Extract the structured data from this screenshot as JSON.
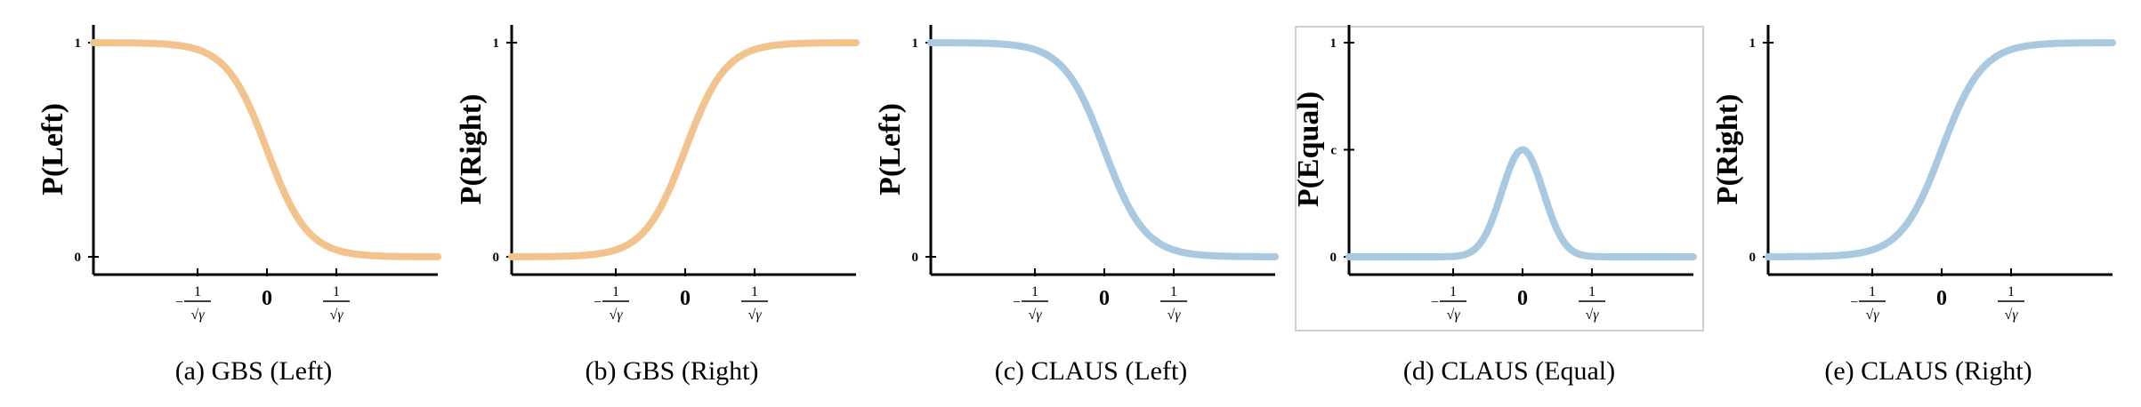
{
  "chart_data": [
    {
      "type": "line",
      "caption": "(a) GBS (Left)",
      "ylabel": "P(Left)",
      "curve": "decreasing_sigmoid",
      "color": "#F3C38E",
      "yticks": [
        "0",
        "1"
      ],
      "xticks": [
        "-1/√γ",
        "0",
        "1/√γ"
      ],
      "ylim": [
        0,
        1
      ],
      "framed": false
    },
    {
      "type": "line",
      "caption": "(b) GBS (Right)",
      "ylabel": "P(Right)",
      "curve": "increasing_sigmoid",
      "color": "#F3C38E",
      "yticks": [
        "0",
        "1"
      ],
      "xticks": [
        "-1/√γ",
        "0",
        "1/√γ"
      ],
      "ylim": [
        0,
        1
      ],
      "framed": false
    },
    {
      "type": "line",
      "caption": "(c) CLAUS (Left)",
      "ylabel": "P(Left)",
      "curve": "decreasing_sigmoid",
      "color": "#A9C9E0",
      "yticks": [
        "0",
        "1"
      ],
      "xticks": [
        "-1/√γ",
        "0",
        "1/√γ"
      ],
      "ylim": [
        0,
        1
      ],
      "framed": false
    },
    {
      "type": "line",
      "caption": "(d) CLAUS (Equal)",
      "ylabel": "P(Equal)",
      "curve": "bell",
      "peak": 0.5,
      "color": "#A9C9E0",
      "yticks": [
        "0",
        "c",
        "1"
      ],
      "xticks": [
        "-1/√γ",
        "0",
        "1/√γ"
      ],
      "ylim": [
        0,
        1
      ],
      "framed": true
    },
    {
      "type": "line",
      "caption": "(e) CLAUS (Right)",
      "ylabel": "P(Right)",
      "curve": "increasing_sigmoid",
      "color": "#A9C9E0",
      "yticks": [
        "0",
        "1"
      ],
      "xticks": [
        "-1/√γ",
        "0",
        "1/√γ"
      ],
      "ylim": [
        0,
        1
      ],
      "framed": false
    }
  ]
}
